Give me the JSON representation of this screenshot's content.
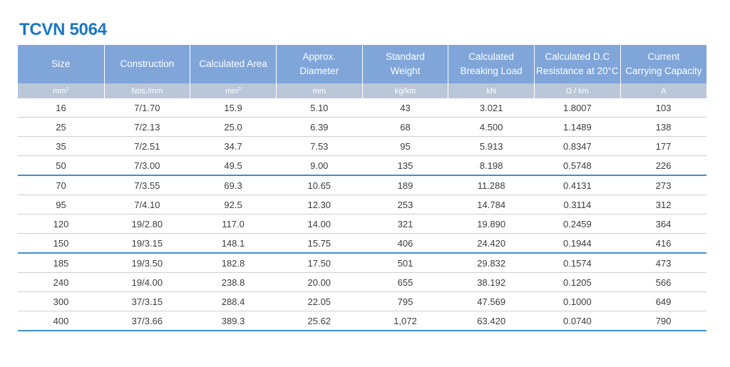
{
  "title": "TCVN 5064",
  "columns": [
    {
      "header_line1": "Size",
      "header_line2": "",
      "unit": "mm",
      "unit_sup": "2"
    },
    {
      "header_line1": "Construction",
      "header_line2": "",
      "unit": "Nos./mm",
      "unit_sup": ""
    },
    {
      "header_line1": "Calculated Area",
      "header_line2": "",
      "unit": "mm",
      "unit_sup": "2"
    },
    {
      "header_line1": "Approx.",
      "header_line2": "Diameter",
      "unit": "mm",
      "unit_sup": ""
    },
    {
      "header_line1": "Standard",
      "header_line2": "Weight",
      "unit": "kg/km",
      "unit_sup": ""
    },
    {
      "header_line1": "Calculated",
      "header_line2": "Breaking Load",
      "unit": "kN",
      "unit_sup": ""
    },
    {
      "header_line1": "Calculated D.C",
      "header_line2": "Resistance at 20°C",
      "unit": "Ω / km",
      "unit_sup": ""
    },
    {
      "header_line1": "Current",
      "header_line2": "Carrying Capacity",
      "unit": "A",
      "unit_sup": ""
    }
  ],
  "rows": [
    [
      "16",
      "7/1.70",
      "15.9",
      "5.10",
      "43",
      "3.021",
      "1.8007",
      "103"
    ],
    [
      "25",
      "7/2.13",
      "25.0",
      "6.39",
      "68",
      "4.500",
      "1.1489",
      "138"
    ],
    [
      "35",
      "7/2.51",
      "34.7",
      "7.53",
      "95",
      "5.913",
      "0.8347",
      "177"
    ],
    [
      "50",
      "7/3.00",
      "49.5",
      "9.00",
      "135",
      "8.198",
      "0.5748",
      "226"
    ],
    [
      "70",
      "7/3.55",
      "69.3",
      "10.65",
      "189",
      "11.288",
      "0.4131",
      "273"
    ],
    [
      "95",
      "7/4.10",
      "92.5",
      "12.30",
      "253",
      "14.784",
      "0.3114",
      "312"
    ],
    [
      "120",
      "19/2.80",
      "117.0",
      "14.00",
      "321",
      "19.890",
      "0.2459",
      "364"
    ],
    [
      "150",
      "19/3.15",
      "148.1",
      "15.75",
      "406",
      "24.420",
      "0.1944",
      "416"
    ],
    [
      "185",
      "19/3.50",
      "182.8",
      "17.50",
      "501",
      "29.832",
      "0.1574",
      "473"
    ],
    [
      "240",
      "19/4.00",
      "238.8",
      "20.00",
      "655",
      "38.192",
      "0.1205",
      "566"
    ],
    [
      "300",
      "37/3.15",
      "288.4",
      "22.05",
      "795",
      "47.569",
      "0.1000",
      "649"
    ],
    [
      "400",
      "37/3.66",
      "389.3",
      "25.62",
      "1,072",
      "63.420",
      "0.0740",
      "790"
    ]
  ],
  "colors": {
    "title": "#1a78c2",
    "header_bg": "#7fa5d9",
    "units_bg": "#bac7d9",
    "separator": "#3b8fd0"
  }
}
